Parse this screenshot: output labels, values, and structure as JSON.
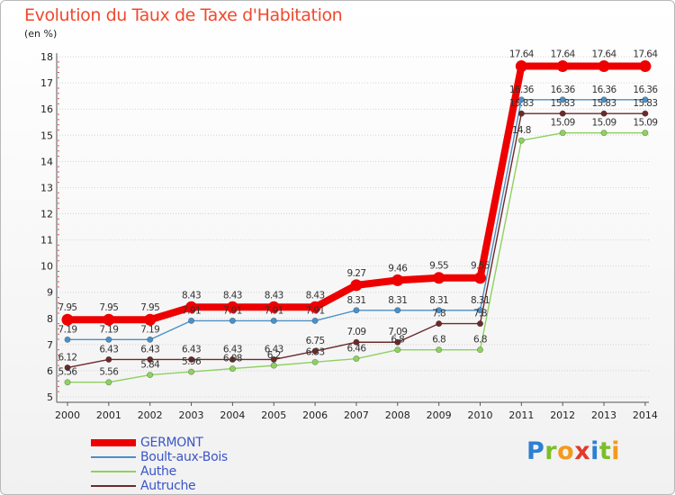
{
  "header": {
    "title": "Evolution du Taux de Taxe d'Habitation",
    "unit": "(en %)"
  },
  "logo": {
    "text": "Proxiti",
    "colors": [
      "#2d7fd1",
      "#7abf2a",
      "#f39a1d",
      "#e23a2b",
      "#2d7fd1",
      "#7abf2a",
      "#f39a1d"
    ]
  },
  "chart_data": {
    "type": "line",
    "title": "Evolution du Taux de Taxe d'Habitation",
    "ylabel": "(en %)",
    "xlabel": "",
    "x": [
      "2000",
      "2001",
      "2002",
      "2003",
      "2004",
      "2005",
      "2006",
      "2007",
      "2008",
      "2009",
      "2010",
      "2011",
      "2012",
      "2013",
      "2014"
    ],
    "ylim": [
      5,
      18
    ],
    "yticks": [
      "5",
      "6",
      "7",
      "8",
      "9",
      "10",
      "11",
      "12",
      "13",
      "14",
      "15",
      "16",
      "17",
      "18"
    ],
    "grid": true,
    "legend_position": "bottom-left",
    "series": [
      {
        "name": "GERMONT",
        "color": "#ee0000",
        "emphasis": true,
        "values": [
          7.95,
          7.95,
          7.95,
          8.43,
          8.43,
          8.43,
          8.43,
          9.27,
          9.46,
          9.55,
          9.55,
          17.64,
          17.64,
          17.64,
          17.64
        ],
        "labels": [
          "7.95",
          "7.95",
          "7.95",
          "8.43",
          "8.43",
          "8.43",
          "8.43",
          "9.27",
          "9.46",
          "9.55",
          "9.55",
          "17.64",
          "17.64",
          "17.64",
          "17.64"
        ]
      },
      {
        "name": "Boult-aux-Bois",
        "color": "#4a90c8",
        "values": [
          7.19,
          7.19,
          7.19,
          7.91,
          7.91,
          7.91,
          7.91,
          8.31,
          8.31,
          8.31,
          8.31,
          16.36,
          16.36,
          16.36,
          16.36
        ],
        "labels": [
          "7.19",
          "7.19",
          "7.19",
          "7.91",
          "7.91",
          "7.91",
          "7.91",
          "8.31",
          "8.31",
          "8.31",
          "8.31",
          "16.36",
          "16.36",
          "16.36",
          "16.36"
        ]
      },
      {
        "name": "Authe",
        "color": "#8ed160",
        "values": [
          5.56,
          5.56,
          5.84,
          5.96,
          6.08,
          6.2,
          6.33,
          6.46,
          6.8,
          6.8,
          6.8,
          14.8,
          15.09,
          15.09,
          15.09
        ],
        "labels": [
          "5.56",
          "5.56",
          "5.84",
          "5.96",
          "6.08",
          "6.2",
          "6.33",
          "6.46",
          "6.8",
          "6.8",
          "6.8",
          "14.8",
          "15.09",
          "15.09",
          "15.09"
        ]
      },
      {
        "name": "Autruche",
        "color": "#6b2a2a",
        "values": [
          6.12,
          6.43,
          6.43,
          6.43,
          6.43,
          6.43,
          6.75,
          7.09,
          7.09,
          7.8,
          7.8,
          15.83,
          15.83,
          15.83,
          15.83
        ],
        "labels": [
          "6.12",
          "6.43",
          "6.43",
          "6.43",
          "6.43",
          "6.43",
          "6.75",
          "7.09",
          "7.09",
          "7.8",
          "7.8",
          "15.83",
          "15.83",
          "15.83",
          "15.83"
        ]
      }
    ]
  }
}
